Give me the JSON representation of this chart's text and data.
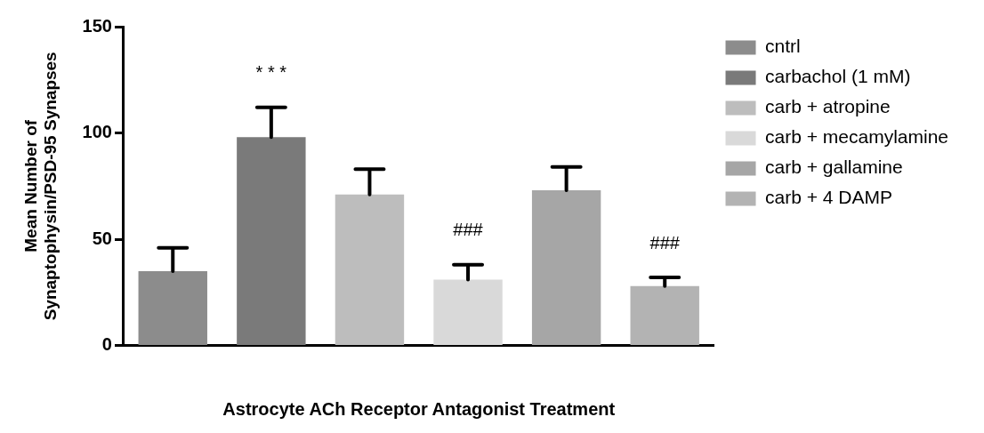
{
  "chart_data": {
    "type": "bar",
    "xlabel": "Astrocyte ACh Receptor Antagonist Treatment",
    "ylabel": "Mean Number of Synaptophysin/PSD-95 Synapses",
    "categories": [
      null,
      null,
      null,
      null,
      null,
      null
    ],
    "series": [
      {
        "name": "cntrl",
        "color": "#8c8c8c",
        "values": [
          35,
          null,
          null,
          null,
          null,
          null
        ],
        "errors": [
          [
            35,
            46
          ],
          null,
          null,
          null,
          null,
          null
        ]
      },
      {
        "name": "carbachol (1 mM)",
        "color": "#7a7a7a",
        "values": [
          null,
          98,
          null,
          null,
          null,
          null
        ],
        "errors": [
          null,
          [
            98,
            112
          ],
          null,
          null,
          null,
          null
        ],
        "value_labels": [
          null,
          "* * *",
          null,
          null,
          null,
          null
        ]
      },
      {
        "name": "carb + atropine",
        "color": "#bdbdbd",
        "values": [
          null,
          null,
          71,
          null,
          null,
          null
        ],
        "errors": [
          null,
          null,
          [
            71,
            83
          ],
          null,
          null,
          null
        ]
      },
      {
        "name": "carb + mecamylamine",
        "color": "#d9d9d9",
        "values": [
          null,
          null,
          null,
          31,
          null,
          null
        ],
        "errors": [
          null,
          null,
          null,
          [
            31,
            38
          ],
          null,
          null
        ],
        "value_labels": [
          null,
          null,
          null,
          "###",
          null,
          null
        ]
      },
      {
        "name": "carb + gallamine",
        "color": "#a6a6a6",
        "values": [
          null,
          null,
          null,
          null,
          73,
          null
        ],
        "errors": [
          null,
          null,
          null,
          null,
          [
            73,
            84
          ],
          null
        ]
      },
      {
        "name": "carb + 4 DAMP",
        "color": "#b3b3b3",
        "values": [
          null,
          null,
          null,
          null,
          null,
          28
        ],
        "errors": [
          null,
          null,
          null,
          null,
          null,
          [
            28,
            32
          ]
        ],
        "value_labels": [
          null,
          null,
          null,
          null,
          null,
          "###"
        ]
      }
    ],
    "ylim": [
      0,
      150
    ],
    "yticks": [
      0,
      50,
      100,
      150
    ],
    "grid": false,
    "legend": "right"
  }
}
